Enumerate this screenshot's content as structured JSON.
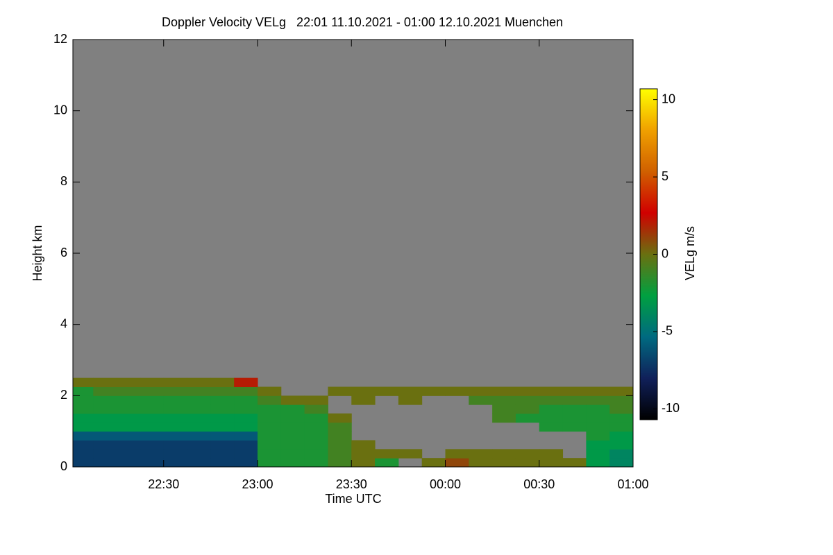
{
  "chart_data": {
    "type": "heatmap",
    "title": "Doppler Velocity VELg   22:01 11.10.2021 - 01:00 12.10.2021 Muenchen",
    "x_label": "Time UTC",
    "y_label": "Height km",
    "colorbar_label": "VELg m/s",
    "xlim": [
      22.0167,
      25
    ],
    "xticks": [
      {
        "value": 22.5,
        "label": "22:30"
      },
      {
        "value": 23,
        "label": "23:00"
      },
      {
        "value": 23.5,
        "label": "23:30"
      },
      {
        "value": 24,
        "label": "00:00"
      },
      {
        "value": 24.5,
        "label": "00:30"
      },
      {
        "value": 25,
        "label": "01:00"
      }
    ],
    "ylim": [
      0,
      12
    ],
    "yticks": [
      0,
      2,
      4,
      6,
      8,
      10,
      12
    ],
    "zlim": [
      -10.7,
      10.7
    ],
    "zticks": [
      -10,
      -5,
      0,
      5,
      10
    ],
    "colorscale": [
      "#000000",
      "#10205a",
      "#006a80",
      "#00a040",
      "#6a7010",
      "#d00000",
      "#d06000",
      "#f0a000",
      "#ffff00"
    ],
    "missing_color": "#808080",
    "xbins": [
      22.0167,
      22.125,
      22.25,
      22.375,
      22.5,
      22.625,
      22.75,
      22.875,
      23,
      23.125,
      23.25,
      23.375,
      23.5,
      23.625,
      23.75,
      23.875,
      24,
      24.125,
      24.25,
      24.375,
      24.5,
      24.625,
      24.75,
      24.875,
      25
    ],
    "ybins": [
      0,
      0.25,
      0.5,
      0.75,
      1,
      1.25,
      1.5,
      1.75,
      2,
      2.25,
      2.5
    ],
    "values": [
      [
        -7,
        -7,
        -7,
        -7,
        -7,
        -7,
        -7,
        -7,
        -2,
        -2,
        -2,
        -1,
        0,
        -2,
        null,
        0,
        1,
        0,
        0,
        0,
        0,
        0,
        -3,
        -4
      ],
      [
        -7,
        -7,
        -7,
        -7,
        -7,
        -7,
        -7,
        -7,
        -2,
        -2,
        -2,
        -1,
        0,
        0,
        0,
        null,
        0,
        0,
        0,
        0,
        0,
        null,
        -3,
        -4
      ],
      [
        -7,
        -7,
        -7,
        -7,
        -7,
        -7,
        -7,
        -7,
        -2,
        -2,
        -2,
        -1,
        0,
        null,
        null,
        null,
        null,
        null,
        null,
        null,
        null,
        null,
        -3,
        -3
      ],
      [
        -6,
        -6,
        -6,
        -6,
        -6,
        -6,
        -6,
        -6,
        -2,
        -2,
        -2,
        -1,
        null,
        null,
        null,
        null,
        null,
        null,
        null,
        null,
        null,
        null,
        -2,
        -3
      ],
      [
        -3,
        -3,
        -3,
        -3,
        -3,
        -3,
        -3,
        -3,
        -2,
        -2,
        -2,
        -1,
        null,
        null,
        null,
        null,
        null,
        null,
        null,
        null,
        -2,
        -2,
        -2,
        -2
      ],
      [
        -3,
        -3,
        -3,
        -3,
        -3,
        -3,
        -3,
        -3,
        -2,
        -2,
        -2,
        0,
        null,
        null,
        null,
        null,
        null,
        null,
        -1,
        -2,
        -2,
        -2,
        -2,
        -2
      ],
      [
        -2,
        -2,
        -2,
        -2,
        -2,
        -2,
        -2,
        -2,
        -2,
        -2,
        -1,
        null,
        null,
        null,
        null,
        null,
        null,
        null,
        -1,
        -1,
        -2,
        -2,
        -2,
        -1
      ],
      [
        -2,
        -2,
        -2,
        -2,
        -2,
        -2,
        -2,
        -2,
        -1,
        0,
        0,
        null,
        0,
        null,
        0,
        null,
        null,
        -1,
        -1,
        -1,
        -1,
        -1,
        -1,
        -1
      ],
      [
        -2,
        -1,
        -1,
        -1,
        -1,
        -1,
        -1,
        -1,
        0,
        null,
        null,
        0,
        0,
        0,
        0,
        0,
        0,
        0,
        0,
        0,
        0,
        0,
        0,
        0
      ],
      [
        0,
        0,
        0,
        0,
        0,
        0,
        0,
        2,
        null,
        null,
        null,
        null,
        null,
        null,
        null,
        null,
        null,
        null,
        null,
        null,
        null,
        null,
        null,
        null
      ]
    ]
  }
}
